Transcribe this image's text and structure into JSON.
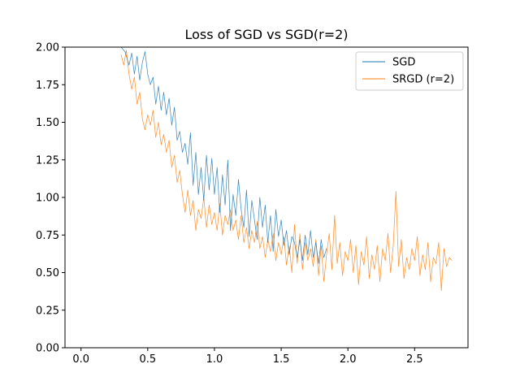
{
  "chart_data": {
    "type": "line",
    "title": "Loss of SGD vs SGD(r=2)",
    "xlabel": "",
    "ylabel": "",
    "xlim": [
      -0.12,
      2.9
    ],
    "ylim": [
      0.0,
      2.0
    ],
    "x_ticks": [
      0.0,
      0.5,
      1.0,
      1.5,
      2.0,
      2.5
    ],
    "x_tick_labels": [
      "0.0",
      "0.5",
      "1.0",
      "1.5",
      "2.0",
      "2.5"
    ],
    "y_ticks": [
      0.0,
      0.25,
      0.5,
      0.75,
      1.0,
      1.25,
      1.5,
      1.75,
      2.0
    ],
    "y_tick_labels": [
      "0.00",
      "0.25",
      "0.50",
      "0.75",
      "1.00",
      "1.25",
      "1.50",
      "1.75",
      "2.00"
    ],
    "grid": false,
    "legend_position": "top-right",
    "series": [
      {
        "name": "SGD",
        "color": "#1f77b4",
        "points": [
          [
            0.3,
            2.0
          ],
          [
            0.33,
            1.97
          ],
          [
            0.36,
            1.88
          ],
          [
            0.38,
            1.96
          ],
          [
            0.4,
            1.82
          ],
          [
            0.42,
            1.94
          ],
          [
            0.44,
            1.78
          ],
          [
            0.46,
            1.9
          ],
          [
            0.48,
            1.97
          ],
          [
            0.5,
            1.82
          ],
          [
            0.52,
            1.75
          ],
          [
            0.54,
            1.8
          ],
          [
            0.56,
            1.62
          ],
          [
            0.58,
            1.74
          ],
          [
            0.6,
            1.58
          ],
          [
            0.62,
            1.7
          ],
          [
            0.64,
            1.55
          ],
          [
            0.66,
            1.66
          ],
          [
            0.68,
            1.48
          ],
          [
            0.7,
            1.6
          ],
          [
            0.72,
            1.38
          ],
          [
            0.74,
            1.44
          ],
          [
            0.76,
            1.3
          ],
          [
            0.78,
            1.36
          ],
          [
            0.8,
            1.22
          ],
          [
            0.82,
            1.43
          ],
          [
            0.84,
            1.08
          ],
          [
            0.86,
            1.3
          ],
          [
            0.88,
            1.02
          ],
          [
            0.9,
            1.2
          ],
          [
            0.92,
            0.98
          ],
          [
            0.94,
            1.28
          ],
          [
            0.96,
            1.05
          ],
          [
            0.98,
            1.26
          ],
          [
            1.0,
            1.02
          ],
          [
            1.02,
            1.2
          ],
          [
            1.04,
            0.9
          ],
          [
            1.06,
            1.15
          ],
          [
            1.08,
            0.95
          ],
          [
            1.1,
            1.25
          ],
          [
            1.12,
            0.78
          ],
          [
            1.14,
            1.02
          ],
          [
            1.16,
            0.88
          ],
          [
            1.18,
            1.12
          ],
          [
            1.2,
            0.92
          ],
          [
            1.22,
            0.8
          ],
          [
            1.24,
            1.05
          ],
          [
            1.26,
            0.74
          ],
          [
            1.28,
            0.98
          ],
          [
            1.3,
            0.85
          ],
          [
            1.32,
            0.72
          ],
          [
            1.34,
            1.0
          ],
          [
            1.36,
            0.8
          ],
          [
            1.38,
            0.95
          ],
          [
            1.4,
            0.7
          ],
          [
            1.42,
            0.88
          ],
          [
            1.44,
            0.64
          ],
          [
            1.46,
            0.92
          ],
          [
            1.48,
            0.74
          ],
          [
            1.5,
            0.85
          ],
          [
            1.52,
            0.68
          ],
          [
            1.54,
            0.78
          ],
          [
            1.56,
            0.62
          ],
          [
            1.58,
            0.74
          ],
          [
            1.6,
            0.7
          ],
          [
            1.62,
            0.6
          ],
          [
            1.64,
            0.72
          ],
          [
            1.66,
            0.58
          ],
          [
            1.68,
            0.75
          ],
          [
            1.7,
            0.62
          ],
          [
            1.72,
            0.78
          ],
          [
            1.74,
            0.6
          ],
          [
            1.76,
            0.7
          ],
          [
            1.78,
            0.56
          ],
          [
            1.8,
            0.72
          ],
          [
            1.82,
            0.6
          ],
          [
            1.84,
            0.66
          ]
        ]
      },
      {
        "name": "SRGD (r=2)",
        "color": "#ff7f0e",
        "points": [
          [
            0.3,
            1.95
          ],
          [
            0.32,
            1.88
          ],
          [
            0.34,
            1.98
          ],
          [
            0.36,
            1.82
          ],
          [
            0.38,
            1.72
          ],
          [
            0.4,
            1.8
          ],
          [
            0.42,
            1.62
          ],
          [
            0.44,
            1.7
          ],
          [
            0.46,
            1.52
          ],
          [
            0.48,
            1.45
          ],
          [
            0.5,
            1.55
          ],
          [
            0.52,
            1.48
          ],
          [
            0.54,
            1.58
          ],
          [
            0.56,
            1.4
          ],
          [
            0.58,
            1.5
          ],
          [
            0.6,
            1.35
          ],
          [
            0.62,
            1.42
          ],
          [
            0.64,
            1.3
          ],
          [
            0.66,
            1.38
          ],
          [
            0.68,
            1.2
          ],
          [
            0.7,
            1.28
          ],
          [
            0.72,
            1.1
          ],
          [
            0.74,
            1.18
          ],
          [
            0.76,
            1.02
          ],
          [
            0.78,
            0.9
          ],
          [
            0.8,
            1.05
          ],
          [
            0.82,
            0.88
          ],
          [
            0.84,
            0.98
          ],
          [
            0.86,
            0.78
          ],
          [
            0.88,
            0.92
          ],
          [
            0.9,
            0.86
          ],
          [
            0.92,
            1.0
          ],
          [
            0.94,
            0.8
          ],
          [
            0.96,
            0.95
          ],
          [
            0.98,
            0.82
          ],
          [
            1.0,
            0.9
          ],
          [
            1.02,
            0.78
          ],
          [
            1.04,
            0.96
          ],
          [
            1.06,
            0.75
          ],
          [
            1.08,
            0.88
          ],
          [
            1.1,
            0.82
          ],
          [
            1.12,
            0.92
          ],
          [
            1.14,
            0.78
          ],
          [
            1.16,
            0.85
          ],
          [
            1.18,
            0.72
          ],
          [
            1.2,
            0.88
          ],
          [
            1.22,
            0.7
          ],
          [
            1.24,
            0.8
          ],
          [
            1.26,
            0.66
          ],
          [
            1.28,
            0.78
          ],
          [
            1.3,
            0.7
          ],
          [
            1.32,
            0.84
          ],
          [
            1.34,
            0.66
          ],
          [
            1.36,
            0.74
          ],
          [
            1.38,
            0.6
          ],
          [
            1.4,
            0.72
          ],
          [
            1.42,
            0.64
          ],
          [
            1.44,
            0.76
          ],
          [
            1.46,
            0.58
          ],
          [
            1.48,
            0.7
          ],
          [
            1.5,
            0.62
          ],
          [
            1.52,
            0.74
          ],
          [
            1.54,
            0.55
          ],
          [
            1.56,
            0.68
          ],
          [
            1.58,
            0.5
          ],
          [
            1.6,
            0.82
          ],
          [
            1.62,
            0.56
          ],
          [
            1.64,
            0.76
          ],
          [
            1.66,
            0.52
          ],
          [
            1.68,
            0.7
          ],
          [
            1.7,
            0.58
          ],
          [
            1.72,
            0.66
          ],
          [
            1.74,
            0.54
          ],
          [
            1.76,
            0.72
          ],
          [
            1.78,
            0.48
          ],
          [
            1.8,
            0.68
          ],
          [
            1.82,
            0.44
          ],
          [
            1.84,
            0.62
          ],
          [
            1.86,
            0.76
          ],
          [
            1.88,
            0.52
          ],
          [
            1.9,
            0.88
          ],
          [
            1.92,
            0.56
          ],
          [
            1.94,
            0.7
          ],
          [
            1.96,
            0.48
          ],
          [
            1.98,
            0.64
          ],
          [
            2.0,
            0.58
          ],
          [
            2.02,
            0.72
          ],
          [
            2.04,
            0.5
          ],
          [
            2.06,
            0.68
          ],
          [
            2.08,
            0.42
          ],
          [
            2.1,
            0.64
          ],
          [
            2.12,
            0.55
          ],
          [
            2.14,
            0.74
          ],
          [
            2.16,
            0.46
          ],
          [
            2.18,
            0.62
          ],
          [
            2.2,
            0.52
          ],
          [
            2.22,
            0.68
          ],
          [
            2.24,
            0.44
          ],
          [
            2.26,
            0.66
          ],
          [
            2.28,
            0.58
          ],
          [
            2.3,
            0.76
          ],
          [
            2.32,
            0.5
          ],
          [
            2.34,
            0.68
          ],
          [
            2.36,
            1.04
          ],
          [
            2.38,
            0.54
          ],
          [
            2.4,
            0.72
          ],
          [
            2.42,
            0.46
          ],
          [
            2.44,
            0.6
          ],
          [
            2.46,
            0.52
          ],
          [
            2.48,
            0.66
          ],
          [
            2.5,
            0.58
          ],
          [
            2.52,
            0.74
          ],
          [
            2.54,
            0.48
          ],
          [
            2.56,
            0.62
          ],
          [
            2.58,
            0.52
          ],
          [
            2.6,
            0.7
          ],
          [
            2.62,
            0.44
          ],
          [
            2.64,
            0.6
          ],
          [
            2.66,
            0.56
          ],
          [
            2.68,
            0.7
          ],
          [
            2.7,
            0.38
          ],
          [
            2.72,
            0.66
          ],
          [
            2.74,
            0.54
          ],
          [
            2.76,
            0.6
          ],
          [
            2.78,
            0.58
          ]
        ]
      }
    ]
  }
}
